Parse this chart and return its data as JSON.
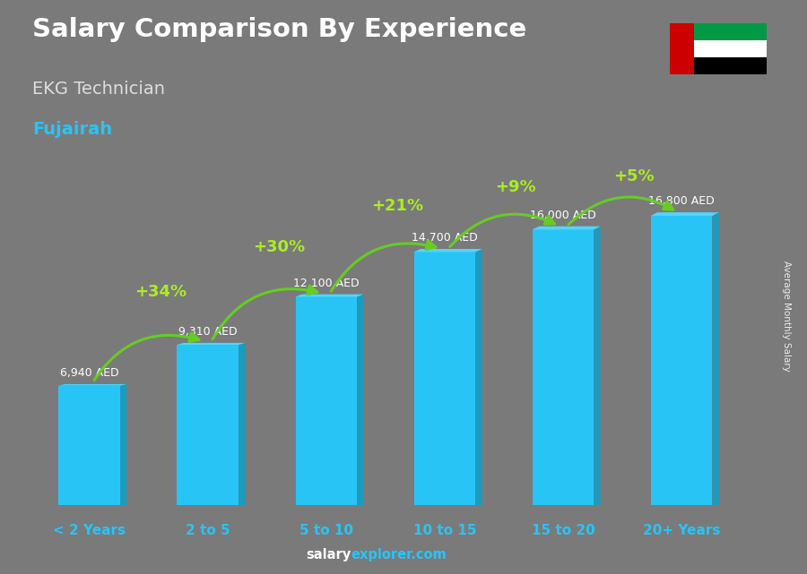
{
  "title": "Salary Comparison By Experience",
  "subtitle": "EKG Technician",
  "city": "Fujairah",
  "categories": [
    "< 2 Years",
    "2 to 5",
    "5 to 10",
    "10 to 15",
    "15 to 20",
    "20+ Years"
  ],
  "values": [
    6940,
    9310,
    12100,
    14700,
    16000,
    16800
  ],
  "bar_color": "#29c4f6",
  "bar_dark_color": "#1a9bbf",
  "bar_light_color": "#55d4f8",
  "pct_labels": [
    "+34%",
    "+30%",
    "+21%",
    "+9%",
    "+5%"
  ],
  "pct_color": "#aaee22",
  "salary_labels": [
    "6,940 AED",
    "9,310 AED",
    "12,100 AED",
    "14,700 AED",
    "16,000 AED",
    "16,800 AED"
  ],
  "title_color": "#ffffff",
  "subtitle_color": "#dddddd",
  "city_color": "#29c4f6",
  "label_color": "#ffffff",
  "tick_label_color": "#29c4f6",
  "ylabel_text": "Average Monthly Salary",
  "footer_salary": "salary",
  "footer_explorer": "explorer.com",
  "bg_color": "#5a5a6a",
  "ylim_max": 21000,
  "figsize": [
    9.0,
    6.41
  ],
  "dpi": 100,
  "uae_flag_colors": [
    "#ff0000",
    "#009900",
    "#ffffff",
    "#666699"
  ],
  "arrow_color": "#66cc22"
}
